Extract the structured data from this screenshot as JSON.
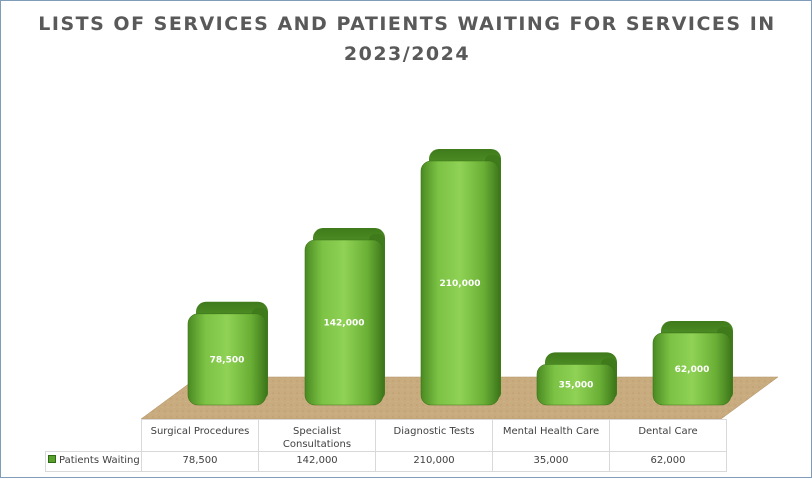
{
  "chart_data": {
    "type": "bar",
    "title": "LISTS OF SERVICES AND PATIENTS WAITING FOR SERVICES IN 2023/2024",
    "categories": [
      "Surgical Procedures",
      "Specialist Consultations",
      "Diagnostic Tests",
      "Mental Health Care",
      "Dental Care"
    ],
    "series": [
      {
        "name": "Patients Waiting",
        "values": [
          78500,
          142000,
          210000,
          35000,
          62000
        ],
        "labels": [
          "78,500",
          "142,000",
          "210,000",
          "35,000",
          "62,000"
        ],
        "color": "#5aa02c"
      }
    ],
    "data_table": true,
    "grid": false,
    "floor_color": "#c8ab7e"
  }
}
